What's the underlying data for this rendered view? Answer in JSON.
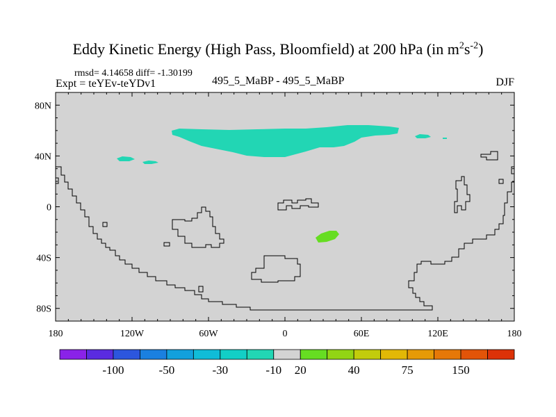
{
  "header": {
    "title_main": "Eddy Kinetic Energy (High Pass, Bloomfield) at 200 hPa (in m",
    "title_sup1": "2",
    "title_mid": "s",
    "title_sup2": "-2",
    "title_end": ")",
    "stats": "rmsd= 4.14658 diff= -1.30199",
    "expt": "Expt = teYEv-teYDv1",
    "center_label": "495_5_MaBP - 495_5_MaBP",
    "season": "DJF"
  },
  "colors": {
    "background": "#d3d3d3",
    "negative_10_band": "#22d6b4",
    "positive_20_band": "#66dd22"
  },
  "chart_data": {
    "type": "heatmap",
    "projection": "cylindrical equidistant",
    "xlim": [
      -180,
      180
    ],
    "ylim": [
      -90,
      90
    ],
    "x_ticks": [
      {
        "value": -180,
        "label": "180"
      },
      {
        "value": -120,
        "label": "120W"
      },
      {
        "value": -60,
        "label": "60W"
      },
      {
        "value": 0,
        "label": "0"
      },
      {
        "value": 60,
        "label": "60E"
      },
      {
        "value": 120,
        "label": "120E"
      },
      {
        "value": 180,
        "label": "180"
      }
    ],
    "y_ticks": [
      {
        "value": 80,
        "label": "80N"
      },
      {
        "value": 40,
        "label": "40N"
      },
      {
        "value": 0,
        "label": "0"
      },
      {
        "value": -40,
        "label": "40S"
      },
      {
        "value": -80,
        "label": "80S"
      }
    ],
    "colorbar": {
      "colors": [
        "#8a22e8",
        "#5a2be0",
        "#2c56de",
        "#1a80e0",
        "#12a0dc",
        "#10bcd8",
        "#12cfc6",
        "#22d6b4",
        "#d3d3d3",
        "#66dd22",
        "#92d414",
        "#c2cc0c",
        "#e2b806",
        "#e69a06",
        "#e67808",
        "#e25408",
        "#dc3208"
      ],
      "labels": [
        "-100",
        "-50",
        "-30",
        "-10",
        "20",
        "40",
        "75",
        "150"
      ]
    },
    "regions": [
      {
        "name": "north-pacific-atlantic-negative-band",
        "level": "-10",
        "lon_range": [
          -90,
          90
        ],
        "lat_range": [
          37,
          62
        ]
      },
      {
        "name": "west-pacific-negative-patch-a",
        "level": "-10",
        "lon_range": [
          -133,
          -120
        ],
        "lat_range": [
          36,
          40
        ]
      },
      {
        "name": "west-pacific-negative-patch-b",
        "level": "-10",
        "lon_range": [
          -114,
          -100
        ],
        "lat_range": [
          33,
          36
        ]
      },
      {
        "name": "east-asia-negative-patch",
        "level": "-10",
        "lon_range": [
          103,
          117
        ],
        "lat_range": [
          52,
          56
        ]
      },
      {
        "name": "indian-ocean-positive-patch",
        "level": "20",
        "lon_range": [
          24,
          42
        ],
        "lat_range": [
          -28,
          -19
        ]
      }
    ]
  }
}
